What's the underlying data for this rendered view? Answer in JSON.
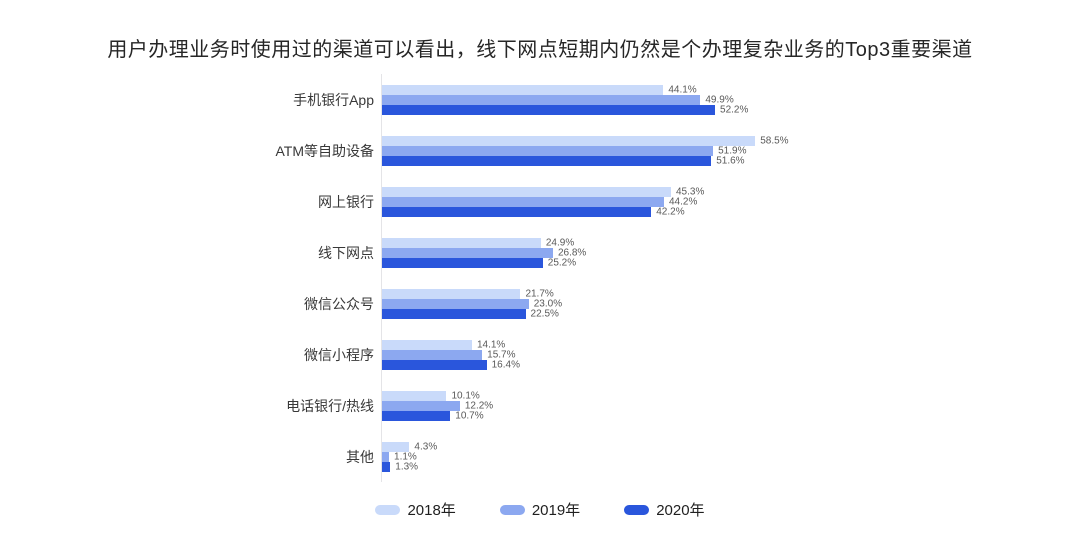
{
  "page": {
    "background": "#ffffff"
  },
  "chart_data": {
    "type": "bar",
    "orientation": "horizontal",
    "title": "用户办理业务时使用过的渠道可以看出，线下网点短期内仍然是个办理复杂业务的Top3重要渠道",
    "categories": [
      "手机银行App",
      "ATM等自助设备",
      "网上银行",
      "线下网点",
      "微信公众号",
      "微信小程序",
      "电话银行/热线",
      "其他"
    ],
    "series": [
      {
        "name": "2018年",
        "color": "#C9DAFA",
        "values": [
          44.1,
          58.5,
          45.3,
          24.9,
          21.7,
          14.1,
          10.1,
          4.3
        ],
        "labels": [
          "44.1%",
          "58.5%",
          "45.3%",
          "24.9%",
          "21.7%",
          "14.1%",
          "10.1%",
          "4.3%"
        ]
      },
      {
        "name": "2019年",
        "color": "#8CA8F0",
        "values": [
          49.9,
          51.9,
          44.2,
          26.8,
          23.0,
          15.7,
          12.2,
          1.1
        ],
        "labels": [
          "49.9%",
          "51.9%",
          "44.2%",
          "26.8%",
          "23.0%",
          "15.7%",
          "12.2%",
          "1.1%"
        ]
      },
      {
        "name": "2020年",
        "color": "#2A56DC",
        "values": [
          52.2,
          51.6,
          42.2,
          25.2,
          22.5,
          16.4,
          10.7,
          1.3
        ],
        "labels": [
          "52.2%",
          "51.6%",
          "42.2%",
          "25.2%",
          "22.5%",
          "16.4%",
          "10.7%",
          "1.3%"
        ]
      }
    ],
    "xlim": [
      0,
      100
    ],
    "grid": false,
    "axis_line_color": "#e4e4e7",
    "value_label_color": "#595959",
    "legend_position": "bottom"
  }
}
